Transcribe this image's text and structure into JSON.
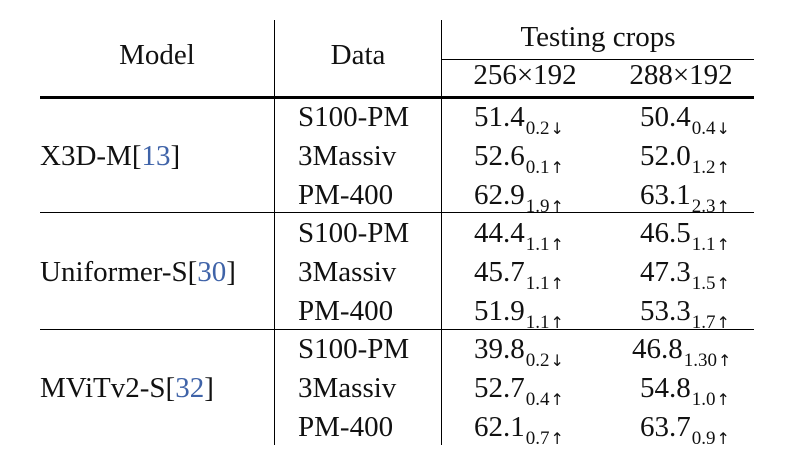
{
  "header": {
    "model": "Model",
    "data": "Data",
    "testing_crops": "Testing crops",
    "crop_a": "256×192",
    "crop_b": "288×192"
  },
  "groups": [
    {
      "model_name": "X3D-M[",
      "ref": "13",
      "model_close": "]",
      "rows": [
        {
          "data": "S100-PM",
          "a_val": "51.4",
          "a_sub": "0.2",
          "a_dir": "↓",
          "b_val": "50.4",
          "b_sub": "0.4",
          "b_dir": "↓"
        },
        {
          "data": "3Massiv",
          "a_val": "52.6",
          "a_sub": "0.1",
          "a_dir": "↑",
          "b_val": "52.0",
          "b_sub": "1.2",
          "b_dir": "↑"
        },
        {
          "data": "PM-400",
          "a_val": "62.9",
          "a_sub": "1.9",
          "a_dir": "↑",
          "b_val": "63.1",
          "b_sub": "2.3",
          "b_dir": "↑"
        }
      ]
    },
    {
      "model_name": "Uniformer-S[",
      "ref": "30",
      "model_close": "]",
      "rows": [
        {
          "data": "S100-PM",
          "a_val": "44.4",
          "a_sub": "1.1",
          "a_dir": "↑",
          "b_val": "46.5",
          "b_sub": "1.1",
          "b_dir": "↑"
        },
        {
          "data": "3Massiv",
          "a_val": "45.7",
          "a_sub": "1.1",
          "a_dir": "↑",
          "b_val": "47.3",
          "b_sub": "1.5",
          "b_dir": "↑"
        },
        {
          "data": "PM-400",
          "a_val": "51.9",
          "a_sub": "1.1",
          "a_dir": "↑",
          "b_val": "53.3",
          "b_sub": "1.7",
          "b_dir": "↑"
        }
      ]
    },
    {
      "model_name": "MViTv2-S[",
      "ref": "32",
      "model_close": "]",
      "rows": [
        {
          "data": "S100-PM",
          "a_val": "39.8",
          "a_sub": "0.2",
          "a_dir": "↓",
          "b_val": "46.8",
          "b_sub": "1.30",
          "b_dir": "↑"
        },
        {
          "data": "3Massiv",
          "a_val": "52.7",
          "a_sub": "0.4",
          "a_dir": "↑",
          "b_val": "54.8",
          "b_sub": "1.0",
          "b_dir": "↑"
        },
        {
          "data": "PM-400",
          "a_val": "62.1",
          "a_sub": "0.7",
          "a_dir": "↑",
          "b_val": "63.7",
          "b_sub": "0.9",
          "b_dir": "↑"
        }
      ]
    }
  ]
}
